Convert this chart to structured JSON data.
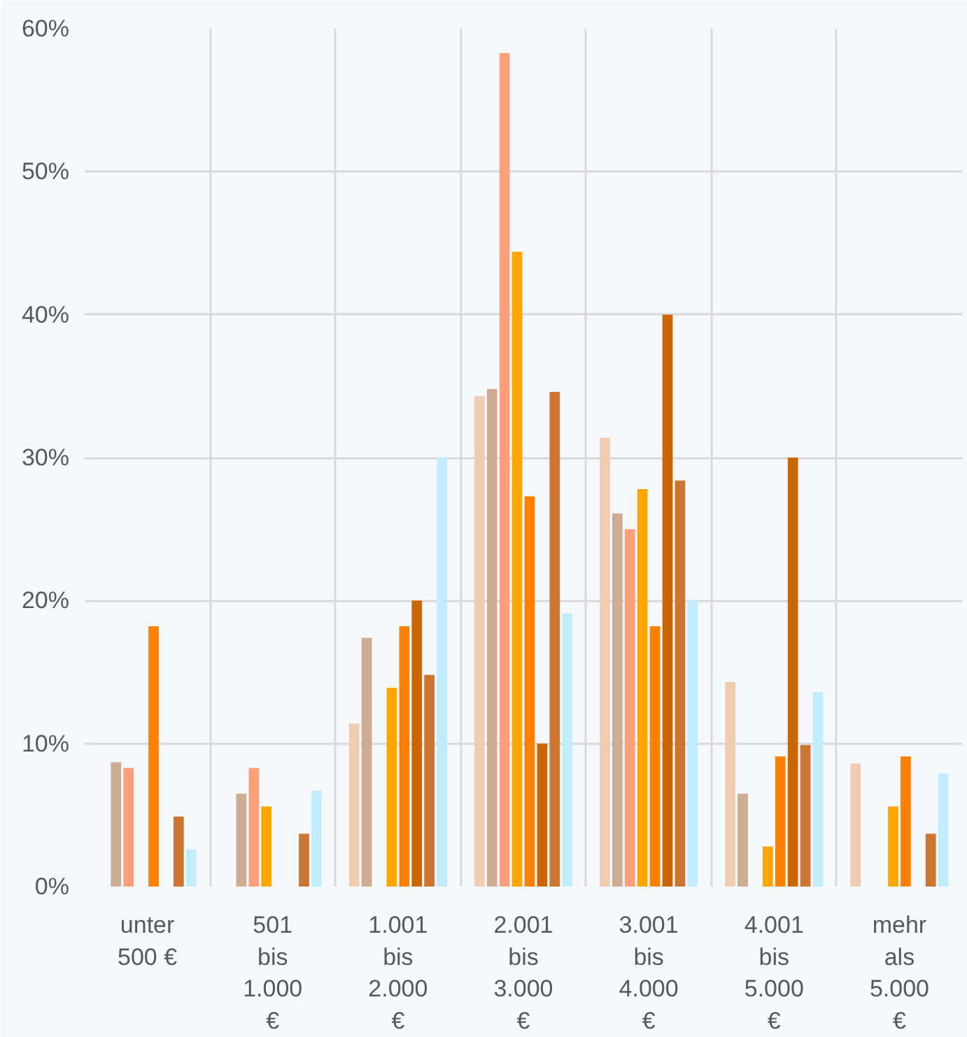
{
  "chart_data": {
    "type": "bar",
    "categories": [
      "unter\n500 €",
      "501\nbis\n1.000\n€",
      "1.001\nbis\n2.000\n€",
      "2.001\nbis\n3.000\n€",
      "3.001\nbis\n4.000\n€",
      "4.001\nbis\n5.000\n€",
      "mehr\nals\n5.000\n€"
    ],
    "series": [
      {
        "color": "#f0cdb0",
        "values": [
          0,
          0,
          11.4,
          34.3,
          31.4,
          14.3,
          8.6
        ]
      },
      {
        "color": "#cdac93",
        "values": [
          8.7,
          6.5,
          17.4,
          34.8,
          26.1,
          6.5,
          0
        ]
      },
      {
        "color": "#ff9f7a",
        "values": [
          8.3,
          8.3,
          0,
          58.3,
          25.0,
          0,
          0
        ]
      },
      {
        "color": "#ffa500",
        "values": [
          0,
          5.6,
          13.9,
          44.4,
          27.8,
          2.8,
          5.6
        ]
      },
      {
        "color": "#ff8000",
        "values": [
          18.2,
          0,
          18.2,
          27.3,
          18.2,
          9.1,
          9.1
        ]
      },
      {
        "color": "#cc6600",
        "values": [
          0,
          0,
          20.0,
          10.0,
          40.0,
          30.0,
          0
        ]
      },
      {
        "color": "#cc7530",
        "values": [
          4.9,
          3.7,
          14.8,
          34.6,
          28.4,
          9.9,
          3.7
        ]
      },
      {
        "color": "#c0ecfc",
        "values": [
          2.6,
          6.7,
          30.0,
          19.1,
          20.0,
          13.6,
          7.9
        ]
      }
    ],
    "ylim": [
      0,
      60
    ],
    "yticks": [
      {
        "value": 0,
        "label": "0%"
      },
      {
        "value": 10,
        "label": "10%"
      },
      {
        "value": 20,
        "label": "20%"
      },
      {
        "value": 30,
        "label": "30%"
      },
      {
        "value": 40,
        "label": "40%"
      },
      {
        "value": 50,
        "label": "50%"
      },
      {
        "value": 60,
        "label": "60%"
      }
    ],
    "grid": true
  }
}
